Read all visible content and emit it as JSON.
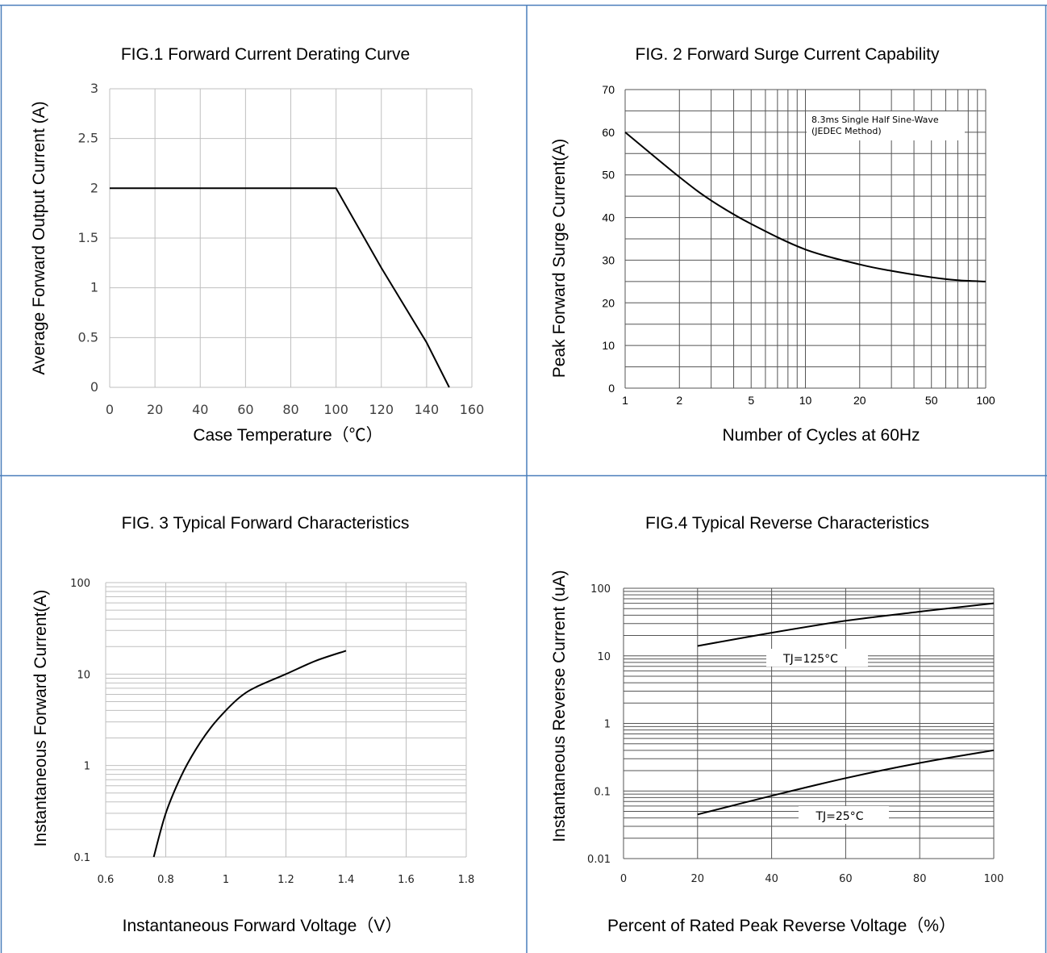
{
  "colors": {
    "panel_border": "#4a7ebb",
    "grid_light": "#bfbfbf",
    "grid_dark": "#555555",
    "curve": "#000000"
  },
  "chart_data": [
    {
      "type": "line",
      "title": "FIG.1 Forward Current Derating Curve",
      "xlabel": "Case Temperature（℃）",
      "ylabel": "Average Forward Output Current (A)",
      "xlim": [
        0,
        160
      ],
      "ylim": [
        0,
        3
      ],
      "xticks": [
        0,
        20,
        40,
        60,
        80,
        100,
        120,
        140,
        160
      ],
      "xtick_labels": [
        "0",
        "20",
        "40",
        "60",
        "80",
        "100",
        "120",
        "140",
        "160"
      ],
      "yticks": [
        0,
        0.5,
        1,
        1.5,
        2,
        2.5,
        3
      ],
      "ytick_labels": [
        "0",
        "0.5",
        "1",
        "1.5",
        "2",
        "2.5",
        "3"
      ],
      "grid": true,
      "series": [
        {
          "x": [
            0,
            100,
            120,
            140,
            150
          ],
          "y": [
            2,
            2,
            1.2,
            0.45,
            0
          ]
        }
      ]
    },
    {
      "type": "line",
      "title": "FIG. 2 Forward Surge Current Capability",
      "xlabel": "Number of Cycles at 60Hz",
      "ylabel": "Peak Forward Surge Current(A)",
      "xscale": "log",
      "xlim": [
        1,
        100
      ],
      "ylim": [
        0,
        70
      ],
      "xticks": [
        1,
        2,
        5,
        10,
        20,
        50,
        100
      ],
      "xtick_labels": [
        "1",
        "2",
        "5",
        "10",
        "20",
        "50",
        "100"
      ],
      "yticks": [
        0,
        10,
        20,
        30,
        40,
        50,
        60,
        70
      ],
      "ytick_labels": [
        "0",
        "10",
        "20",
        "30",
        "40",
        "50",
        "60",
        "70"
      ],
      "grid": true,
      "annotations": [
        "8.3ms Single Half Sine-Wave",
        "(JEDEC Method)"
      ],
      "legend_position": "top-right",
      "series": [
        {
          "x": [
            1,
            2,
            3,
            5,
            10,
            20,
            30,
            50,
            70,
            100
          ],
          "y": [
            60,
            49.5,
            44,
            38.5,
            32.5,
            29,
            27.5,
            26,
            25.3,
            25
          ]
        }
      ]
    },
    {
      "type": "line",
      "title": "FIG. 3 Typical Forward Characteristics",
      "xlabel": "Instantaneous Forward Voltage（V）",
      "ylabel": "Instantaneous Forward Current(A)",
      "yscale": "log",
      "xlim": [
        0.6,
        1.8
      ],
      "ylim": [
        0.1,
        100
      ],
      "xticks": [
        0.6,
        0.8,
        1.0,
        1.2,
        1.4,
        1.6,
        1.8
      ],
      "xtick_labels": [
        "0.6",
        "0.8",
        "1",
        "1.2",
        "1.4",
        "1.6",
        "1.8"
      ],
      "yticks": [
        0.1,
        1,
        10,
        100
      ],
      "ytick_labels": [
        "0.1",
        "1",
        "10",
        "100"
      ],
      "grid": true,
      "series": [
        {
          "x": [
            0.76,
            0.8,
            0.85,
            0.9,
            0.95,
            1.0,
            1.05,
            1.1,
            1.2,
            1.3,
            1.4
          ],
          "y": [
            0.1,
            0.3,
            0.75,
            1.5,
            2.6,
            4.0,
            5.7,
            7.2,
            10,
            14,
            18
          ]
        }
      ]
    },
    {
      "type": "line",
      "title": "FIG.4 Typical Reverse Characteristics",
      "xlabel": "Percent of Rated Peak Reverse Voltage（%）",
      "ylabel": "Instantaneous Reverse Current (uA)",
      "yscale": "log",
      "xlim": [
        0,
        100
      ],
      "ylim": [
        0.01,
        100
      ],
      "xticks": [
        0,
        20,
        40,
        60,
        80,
        100
      ],
      "xtick_labels": [
        "0",
        "20",
        "40",
        "60",
        "80",
        "100"
      ],
      "yticks": [
        0.01,
        0.1,
        1,
        10,
        100
      ],
      "ytick_labels": [
        "0.01",
        "0.1",
        "1",
        "10",
        "100"
      ],
      "grid": true,
      "series": [
        {
          "name": "TJ=125°C",
          "x": [
            20,
            40,
            60,
            80,
            100
          ],
          "y": [
            14,
            22,
            33,
            45,
            60
          ]
        },
        {
          "name": "TJ=25°C",
          "x": [
            20,
            40,
            60,
            80,
            100
          ],
          "y": [
            0.045,
            0.085,
            0.155,
            0.26,
            0.4
          ]
        }
      ]
    }
  ]
}
